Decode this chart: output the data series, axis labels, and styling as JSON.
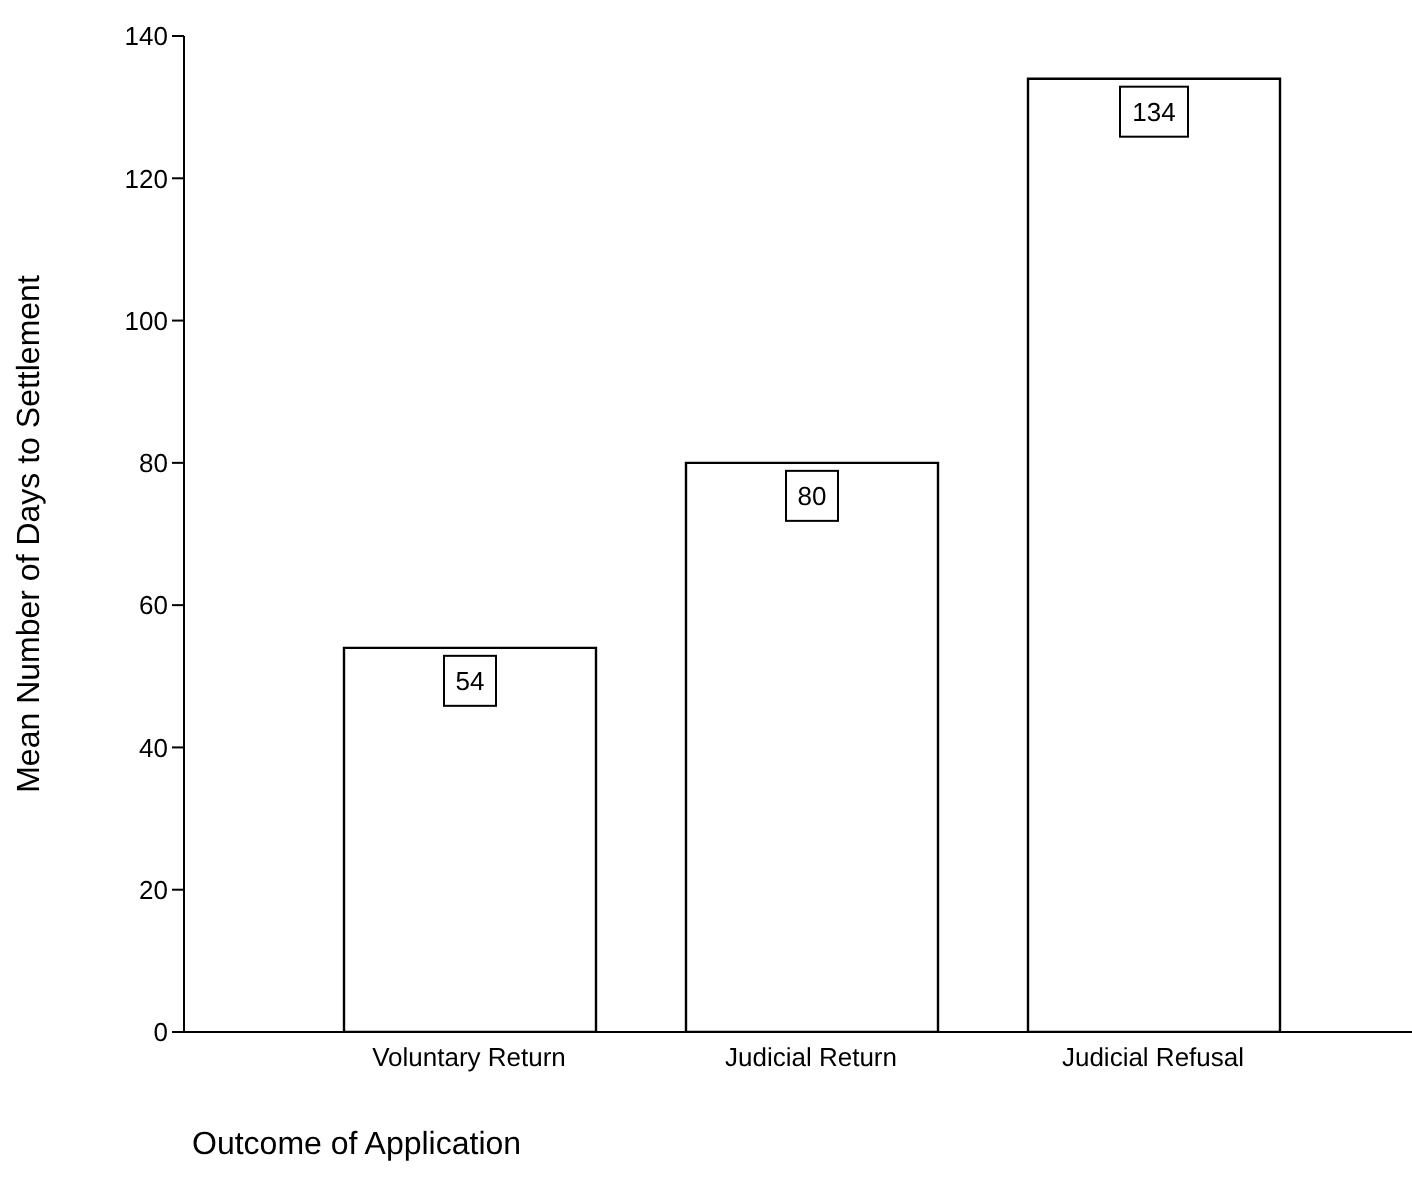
{
  "chart_data": {
    "type": "bar",
    "categories": [
      "Voluntary Return",
      "Judicial Return",
      "Judicial Refusal"
    ],
    "values": [
      54,
      80,
      134
    ],
    "color": "#ffffff",
    "xlabel": "Outcome of Application",
    "ylabel": "Mean Number of Days to Settlement",
    "ylim": [
      0,
      140
    ],
    "yticks": [
      0,
      20,
      40,
      60,
      80,
      100,
      120,
      140
    ],
    "grid": false,
    "data_labels": true
  }
}
